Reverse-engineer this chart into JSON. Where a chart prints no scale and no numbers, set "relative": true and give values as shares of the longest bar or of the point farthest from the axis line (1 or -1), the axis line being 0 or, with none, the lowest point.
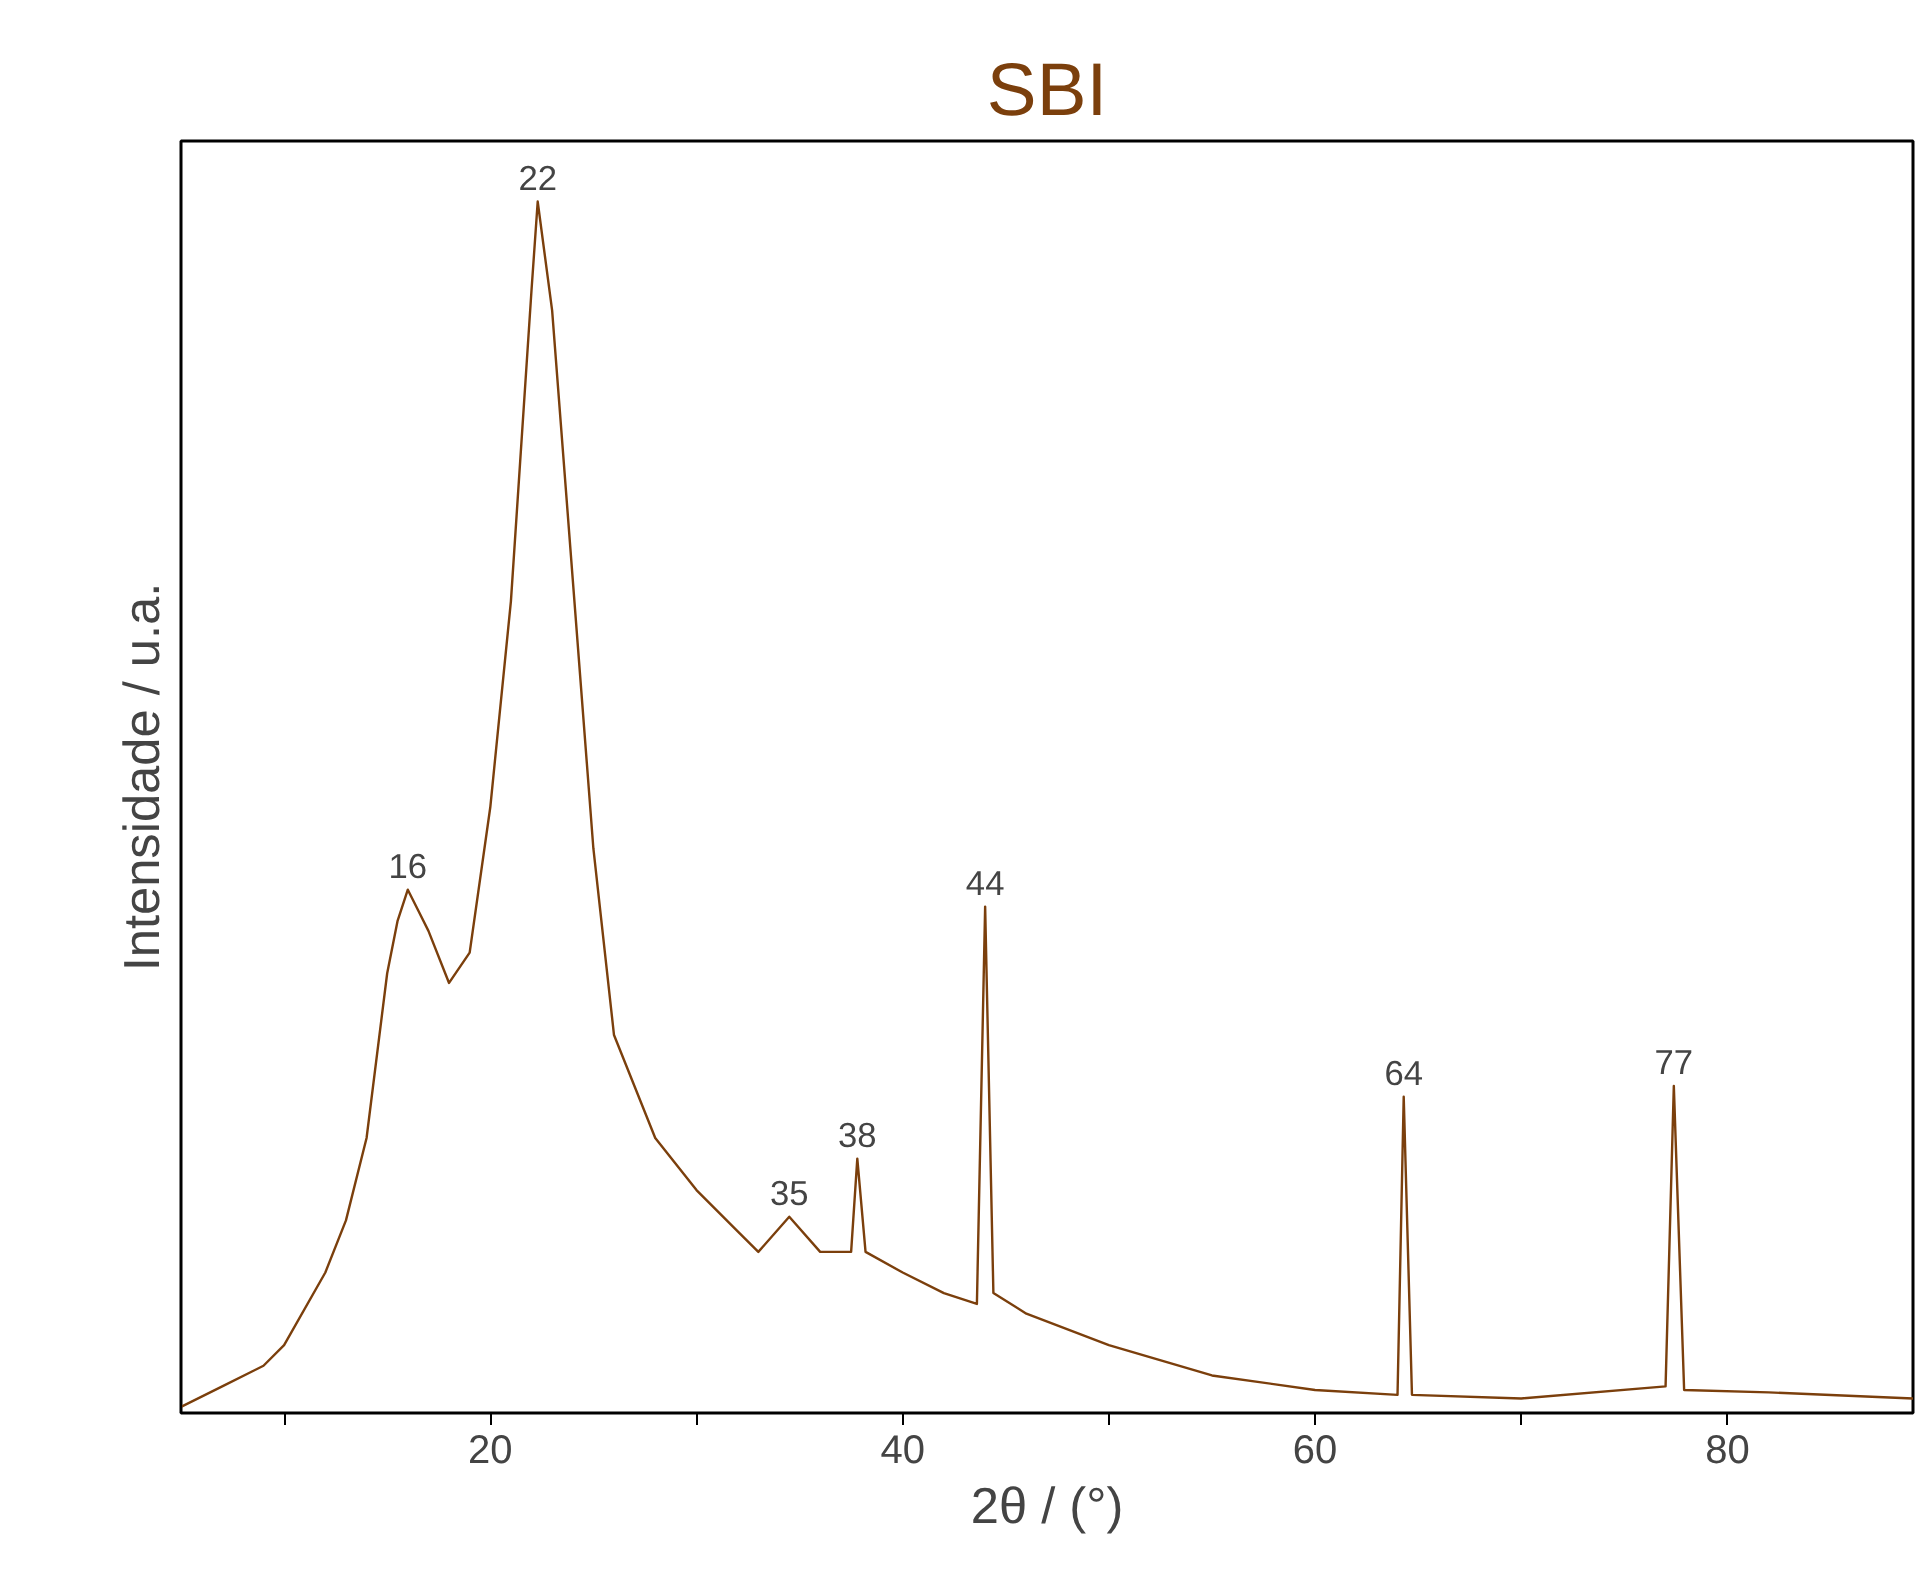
{
  "chart_data": {
    "type": "line",
    "title": "SBI",
    "xlabel": "2θ / (°)",
    "ylabel": "Intensidade / u.a.",
    "relative": true,
    "x": [
      5,
      7,
      9,
      10,
      12,
      13,
      14,
      15,
      15.5,
      16,
      16.5,
      17,
      18,
      19,
      20,
      21,
      22,
      22.3,
      23,
      24,
      25,
      26,
      28,
      30,
      32,
      33,
      34.5,
      36,
      37.5,
      37.8,
      38.2,
      40,
      42,
      43.6,
      44,
      44.4,
      46,
      50,
      55,
      60,
      64,
      64.3,
      64.7,
      70,
      77,
      77.4,
      77.9,
      82,
      89
    ],
    "series": [
      {
        "color": "#7b3f0c",
        "values": [
          0.005,
          0.022,
          0.039,
          0.056,
          0.116,
          0.159,
          0.227,
          0.363,
          0.406,
          0.432,
          0.415,
          0.398,
          0.355,
          0.38,
          0.5,
          0.67,
          0.927,
          1.0,
          0.91,
          0.688,
          0.466,
          0.312,
          0.227,
          0.184,
          0.15,
          0.133,
          0.162,
          0.133,
          0.133,
          0.21,
          0.133,
          0.116,
          0.099,
          0.09,
          0.418,
          0.099,
          0.082,
          0.056,
          0.031,
          0.019,
          0.015,
          0.261,
          0.015,
          0.012,
          0.022,
          0.27,
          0.019,
          0.017,
          0.012
        ]
      }
    ],
    "xlim": [
      5,
      89
    ],
    "xticks": [
      {
        "value": 10,
        "label": null
      },
      20,
      {
        "value": 30,
        "label": null
      },
      40,
      {
        "value": 50,
        "label": null
      },
      60,
      {
        "value": 70,
        "label": null
      },
      80
    ],
    "tick_labels": "x",
    "grid": false,
    "marker": "none",
    "line_style": "solid",
    "annotations": [
      {
        "text": "16",
        "x": 16,
        "y": 0.432
      },
      {
        "text": "22",
        "x": 22.3,
        "y": 1.0
      },
      {
        "text": "35",
        "x": 34.5,
        "y": 0.162
      },
      {
        "text": "38",
        "x": 37.8,
        "y": 0.21
      },
      {
        "text": "44",
        "x": 44,
        "y": 0.418
      },
      {
        "text": "64",
        "x": 64.3,
        "y": 0.261
      },
      {
        "text": "77",
        "x": 77.4,
        "y": 0.27
      }
    ]
  }
}
